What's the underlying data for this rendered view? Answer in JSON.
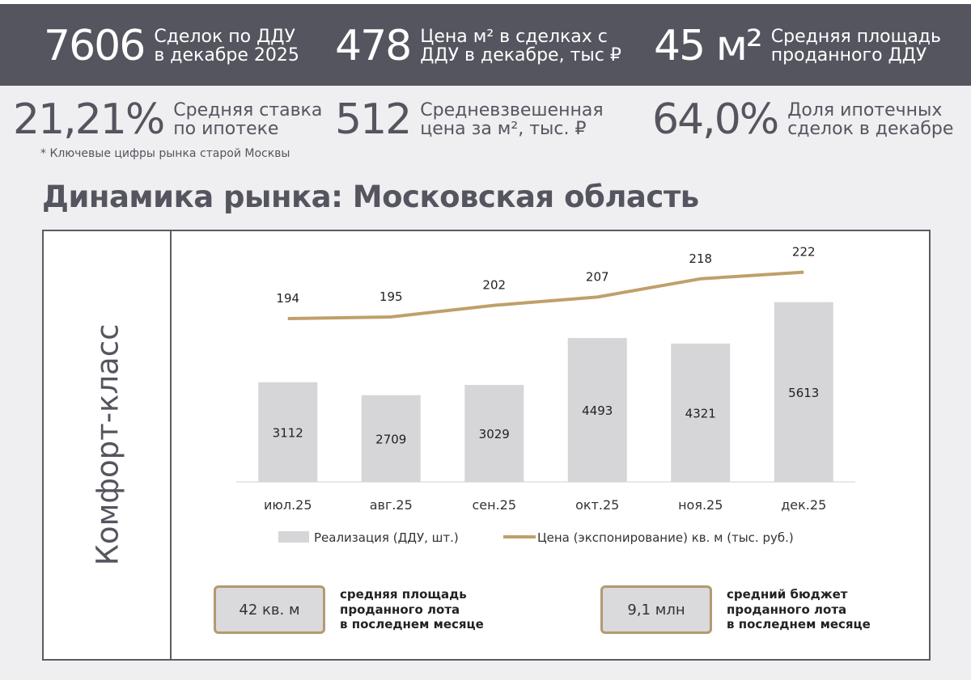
{
  "header_stats": [
    {
      "value": "7606",
      "label": "Сделок по ДДУ\nв декабре 2025"
    },
    {
      "value": "478",
      "label": "Цена м² в сделках с\nДДУ в декабре, тыс ₽"
    },
    {
      "value": "45 м²",
      "label": "Средняя площадь\nпроданного ДДУ"
    }
  ],
  "secondary_stats": [
    {
      "value": "21,21%",
      "label": "Средняя ставка\nпо ипотеке"
    },
    {
      "value": "512",
      "label": "Средневзвешенная\nцена за м², тыс. ₽"
    },
    {
      "value": "64,0%",
      "label": "Доля ипотечных\nсделок в декабре"
    }
  ],
  "footnote": "* Ключевые цифры рынка старой Москвы",
  "section_title": "Динамика рынка: Московская область",
  "segment_label": "Комфорт-класс",
  "colors": {
    "band": "#54555f",
    "bar": "#d6d5d7",
    "line": "#bfa06a",
    "accent_border": "#b39a6e"
  },
  "chart_data": {
    "type": "bar",
    "categories": [
      "июл.25",
      "авг.25",
      "сен.25",
      "окт.25",
      "ноя.25",
      "дек.25"
    ],
    "series": [
      {
        "name": "Реализация (ДДУ, шт.)",
        "type": "bar",
        "values": [
          3112,
          2709,
          3029,
          4493,
          4321,
          5613
        ]
      },
      {
        "name": "Цена (экспонирование) кв. м (тыс. руб.)",
        "type": "line",
        "values": [
          194,
          195,
          202,
          207,
          218,
          222
        ]
      }
    ],
    "legend_position": "bottom",
    "grid": false
  },
  "summaries": [
    {
      "value": "42 кв. м",
      "text": "средняя площадь\nпроданного лота\nв последнем месяце"
    },
    {
      "value": "9,1 млн",
      "text": "средний бюджет\nпроданного лота\nв последнем месяце"
    }
  ]
}
